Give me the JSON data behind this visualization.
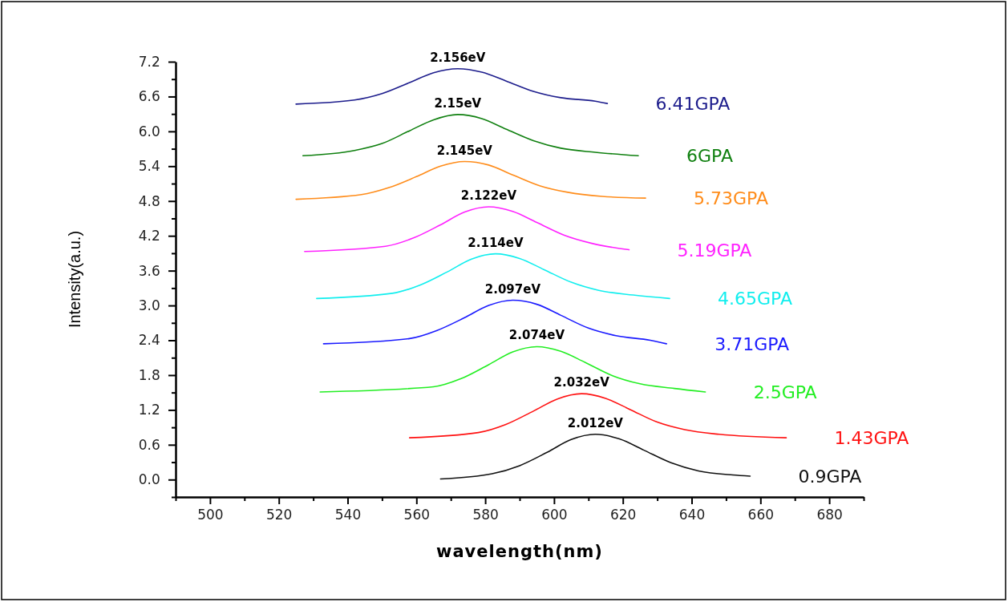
{
  "chart_data": {
    "type": "line",
    "xlabel": "wavelength(nm)",
    "ylabel": "Intensity(a.u.)",
    "xlim": [
      490,
      690
    ],
    "ylim": [
      -0.3,
      7.2
    ],
    "xticks": [
      {
        "value": 490,
        "label": null
      },
      500,
      {
        "value": 510,
        "label": null
      },
      520,
      {
        "value": 530,
        "label": null
      },
      540,
      {
        "value": 550,
        "label": null
      },
      560,
      {
        "value": 570,
        "label": null
      },
      580,
      {
        "value": 590,
        "label": null
      },
      600,
      {
        "value": 610,
        "label": null
      },
      620,
      {
        "value": 630,
        "label": null
      },
      640,
      {
        "value": 650,
        "label": null
      },
      660,
      {
        "value": 670,
        "label": null
      },
      680,
      {
        "value": 690,
        "label": null
      }
    ],
    "yticks": [
      {
        "value": -0.3,
        "label": null
      },
      {
        "value": 0,
        "label": "0.0"
      },
      {
        "value": 0.3,
        "label": null
      },
      0.6,
      {
        "value": 0.9,
        "label": null
      },
      1.2,
      {
        "value": 1.5,
        "label": null
      },
      1.8,
      {
        "value": 2.1,
        "label": null
      },
      2.4,
      {
        "value": 2.7,
        "label": null
      },
      {
        "value": 3,
        "label": "3.0"
      },
      {
        "value": 3.3,
        "label": null
      },
      3.6,
      {
        "value": 3.9,
        "label": null
      },
      4.2,
      {
        "value": 4.5,
        "label": null
      },
      4.8,
      {
        "value": 5.1,
        "label": null
      },
      5.4,
      {
        "value": 5.7,
        "label": null
      },
      {
        "value": 6,
        "label": "6.0"
      },
      {
        "value": 6.3,
        "label": null
      },
      6.6,
      {
        "value": 6.9,
        "label": null
      },
      7.2
    ],
    "grid": false,
    "marker": "none",
    "line_style": "solid",
    "series": [
      {
        "name": "6.41GPA",
        "color": "#1c1c8c",
        "x": [
          525,
          542,
          550,
          558,
          565,
          572,
          579,
          586,
          594,
          602,
          612,
          615.5
        ],
        "values": [
          6.47,
          6.54,
          6.65,
          6.84,
          7.01,
          7.08,
          7.02,
          6.87,
          6.69,
          6.58,
          6.52,
          6.48
        ]
      },
      {
        "name": "6GPA",
        "color": "#108010",
        "x": [
          527,
          542,
          550,
          558,
          565,
          572,
          579,
          586,
          594,
          602,
          612,
          624.5
        ],
        "values": [
          5.58,
          5.67,
          5.79,
          6.01,
          6.2,
          6.29,
          6.22,
          6.04,
          5.84,
          5.71,
          5.64,
          5.58
        ]
      },
      {
        "name": "5.73GPA",
        "color": "#ff8c1a",
        "x": [
          525,
          544,
          552,
          560,
          567,
          574,
          581,
          588,
          596,
          604,
          614,
          626.6
        ],
        "values": [
          4.83,
          4.91,
          5.03,
          5.22,
          5.4,
          5.48,
          5.42,
          5.25,
          5.06,
          4.95,
          4.88,
          4.85
        ]
      },
      {
        "name": "5.19GPA",
        "color": "#ff22ff",
        "x": [
          527.5,
          551,
          559,
          567,
          574,
          581,
          588,
          595,
          603,
          611,
          621.8
        ],
        "values": [
          3.93,
          4.02,
          4.16,
          4.39,
          4.61,
          4.7,
          4.62,
          4.43,
          4.21,
          4.07,
          3.96
        ]
      },
      {
        "name": "4.65GPA",
        "color": "#11eeee",
        "x": [
          531,
          553,
          561,
          569,
          576,
          583,
          590,
          597,
          605,
          613,
          623,
          633.6
        ],
        "values": [
          3.12,
          3.21,
          3.35,
          3.58,
          3.8,
          3.89,
          3.81,
          3.62,
          3.4,
          3.26,
          3.18,
          3.12
        ]
      },
      {
        "name": "3.71GPA",
        "color": "#1a1aff",
        "x": [
          533,
          558,
          566,
          574,
          581,
          588,
          595,
          602,
          610,
          618,
          628,
          632.7
        ],
        "values": [
          2.34,
          2.43,
          2.57,
          2.79,
          3,
          3.09,
          3.02,
          2.83,
          2.61,
          2.48,
          2.4,
          2.34
        ]
      },
      {
        "name": "2.5GPA",
        "color": "#22ee22",
        "x": [
          532,
          565,
          573,
          581,
          588,
          595,
          602,
          609,
          617,
          625,
          635,
          644
        ],
        "values": [
          1.51,
          1.6,
          1.74,
          1.98,
          2.2,
          2.29,
          2.21,
          2.02,
          1.79,
          1.65,
          1.57,
          1.51
        ]
      },
      {
        "name": "1.43GPA",
        "color": "#ff1111",
        "x": [
          558,
          578,
          586,
          594,
          601,
          608,
          615,
          622,
          630,
          638,
          648,
          667.5
        ],
        "values": [
          0.72,
          0.81,
          0.95,
          1.18,
          1.39,
          1.48,
          1.4,
          1.21,
          0.99,
          0.86,
          0.78,
          0.72
        ]
      },
      {
        "name": "0.9GPA",
        "color": "#111111",
        "x": [
          567,
          582,
          590,
          598,
          605,
          612,
          619,
          626,
          634,
          642,
          652,
          657
        ],
        "values": [
          0.01,
          0.1,
          0.24,
          0.47,
          0.69,
          0.78,
          0.7,
          0.51,
          0.29,
          0.15,
          0.08,
          0.06
        ]
      }
    ],
    "annotations": [
      {
        "text": "2.156eV",
        "x": 572,
        "y": 7.08
      },
      {
        "text": "2.15eV",
        "x": 572,
        "y": 6.29
      },
      {
        "text": "2.145eV",
        "x": 574,
        "y": 5.48
      },
      {
        "text": "2.122eV",
        "x": 581,
        "y": 4.7
      },
      {
        "text": "2.114eV",
        "x": 583,
        "y": 3.89
      },
      {
        "text": "2.097eV",
        "x": 588,
        "y": 3.09
      },
      {
        "text": "2.074eV",
        "x": 595,
        "y": 2.29
      },
      {
        "text": "2.032eV",
        "x": 608,
        "y": 1.48
      },
      {
        "text": "2.012eV",
        "x": 612,
        "y": 0.78
      }
    ]
  }
}
